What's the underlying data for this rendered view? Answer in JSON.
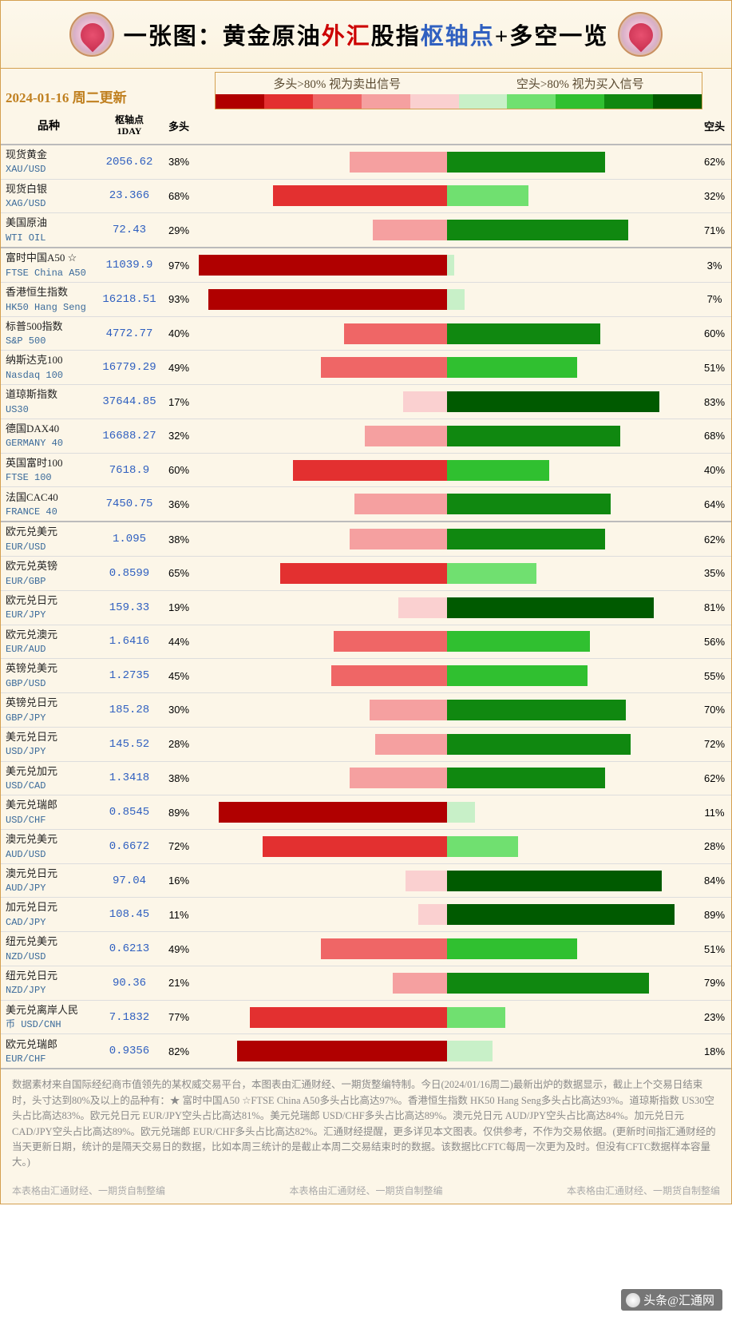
{
  "title_parts": [
    "一张图：黄金原油",
    "外汇",
    "股指",
    "枢轴点",
    "+多空一览"
  ],
  "date_label": "2024-01-16 周二更新",
  "legend_sell": "多头>80% 视为卖出信号",
  "legend_buy": "空头>80% 视为买入信号",
  "headers": {
    "name": "品种",
    "pivot": "枢轴点\n1DAY",
    "long": "多头",
    "short": "空头"
  },
  "scale_colors": [
    "#b00000",
    "#e33030",
    "#ef6666",
    "#f5a0a0",
    "#fad0d0",
    "#c8f0c8",
    "#70e070",
    "#30c030",
    "#108810",
    "#005a00"
  ],
  "sections": [
    [
      {
        "cn": "现货黄金",
        "en": "XAU/USD",
        "pivot": "2056.62",
        "long": 38,
        "short": 62
      },
      {
        "cn": "现货白银",
        "en": "XAG/USD",
        "pivot": "23.366",
        "long": 68,
        "short": 32
      },
      {
        "cn": "美国原油",
        "en": "WTI OIL",
        "pivot": "72.43",
        "long": 29,
        "short": 71
      }
    ],
    [
      {
        "cn": "富时中国A50 ☆",
        "en": "FTSE China A50",
        "pivot": "11039.9",
        "long": 97,
        "short": 3
      },
      {
        "cn": "香港恒生指数",
        "en": "HK50 Hang Seng",
        "pivot": "16218.51",
        "long": 93,
        "short": 7
      },
      {
        "cn": "标普500指数",
        "en": "S&P 500",
        "pivot": "4772.77",
        "long": 40,
        "short": 60
      },
      {
        "cn": "纳斯达克100",
        "en": "Nasdaq 100",
        "pivot": "16779.29",
        "long": 49,
        "short": 51
      },
      {
        "cn": "道琼斯指数",
        "en": "US30",
        "pivot": "37644.85",
        "long": 17,
        "short": 83
      },
      {
        "cn": "德国DAX40",
        "en": "GERMANY 40",
        "pivot": "16688.27",
        "long": 32,
        "short": 68
      },
      {
        "cn": "英国富时100",
        "en": "FTSE 100",
        "pivot": "7618.9",
        "long": 60,
        "short": 40
      },
      {
        "cn": "法国CAC40",
        "en": "FRANCE 40",
        "pivot": "7450.75",
        "long": 36,
        "short": 64
      }
    ],
    [
      {
        "cn": "欧元兑美元",
        "en": "EUR/USD",
        "pivot": "1.095",
        "long": 38,
        "short": 62
      },
      {
        "cn": "欧元兑英镑",
        "en": "EUR/GBP",
        "pivot": "0.8599",
        "long": 65,
        "short": 35
      },
      {
        "cn": "欧元兑日元",
        "en": "EUR/JPY",
        "pivot": "159.33",
        "long": 19,
        "short": 81
      },
      {
        "cn": "欧元兑澳元",
        "en": "EUR/AUD",
        "pivot": "1.6416",
        "long": 44,
        "short": 56
      },
      {
        "cn": "英镑兑美元",
        "en": "GBP/USD",
        "pivot": "1.2735",
        "long": 45,
        "short": 55
      },
      {
        "cn": "英镑兑日元",
        "en": "GBP/JPY",
        "pivot": "185.28",
        "long": 30,
        "short": 70
      },
      {
        "cn": "美元兑日元",
        "en": "USD/JPY",
        "pivot": "145.52",
        "long": 28,
        "short": 72
      },
      {
        "cn": "美元兑加元",
        "en": "USD/CAD",
        "pivot": "1.3418",
        "long": 38,
        "short": 62
      },
      {
        "cn": "美元兑瑞郎",
        "en": "USD/CHF",
        "pivot": "0.8545",
        "long": 89,
        "short": 11
      },
      {
        "cn": "澳元兑美元",
        "en": "AUD/USD",
        "pivot": "0.6672",
        "long": 72,
        "short": 28
      },
      {
        "cn": "澳元兑日元",
        "en": "AUD/JPY",
        "pivot": "97.04",
        "long": 16,
        "short": 84
      },
      {
        "cn": "加元兑日元",
        "en": "CAD/JPY",
        "pivot": "108.45",
        "long": 11,
        "short": 89
      },
      {
        "cn": "纽元兑美元",
        "en": "NZD/USD",
        "pivot": "0.6213",
        "long": 49,
        "short": 51
      },
      {
        "cn": "纽元兑日元",
        "en": "NZD/JPY",
        "pivot": "90.36",
        "long": 21,
        "short": 79
      },
      {
        "cn": "美元兑离岸人民币",
        "en": "USD/CNH",
        "pivot": "7.1832",
        "long": 77,
        "short": 23,
        "cn_split": "美元兑离岸人民\n币   USD/CNH"
      },
      {
        "cn": "欧元兑瑞郎",
        "en": "EUR/CHF",
        "pivot": "0.9356",
        "long": 82,
        "short": 18
      }
    ]
  ],
  "footer": "数据素材来自国际经纪商市值领先的某权威交易平台，本图表由汇通财经、一期货整编特制。今日(2024/01/16周二)最新出炉的数据显示，截止上个交易日结束时，头寸达到80%及以上的品种有：★ 富时中国A50 ☆FTSE China A50多头占比高达97%。香港恒生指数 HK50 Hang Seng多头占比高达93%。道琼斯指数 US30空头占比高达83%。欧元兑日元 EUR/JPY空头占比高达81%。美元兑瑞郎 USD/CHF多头占比高达89%。澳元兑日元 AUD/JPY空头占比高达84%。加元兑日元 CAD/JPY空头占比高达89%。欧元兑瑞郎 EUR/CHF多头占比高达82%。汇通财经提醒，更多详见本文图表。仅供参考，不作为交易依据。(更新时间指汇通财经的当天更新日期，统计的是隔天交易日的数据，比如本周三统计的是截止本周二交易结束时的数据。该数据比CFTC每周一次更为及时。但没有CFTC数据样本容量大。)",
  "footer_credit": "本表格由汇通财经、一期货自制整编",
  "watermark": "头条@汇通网"
}
